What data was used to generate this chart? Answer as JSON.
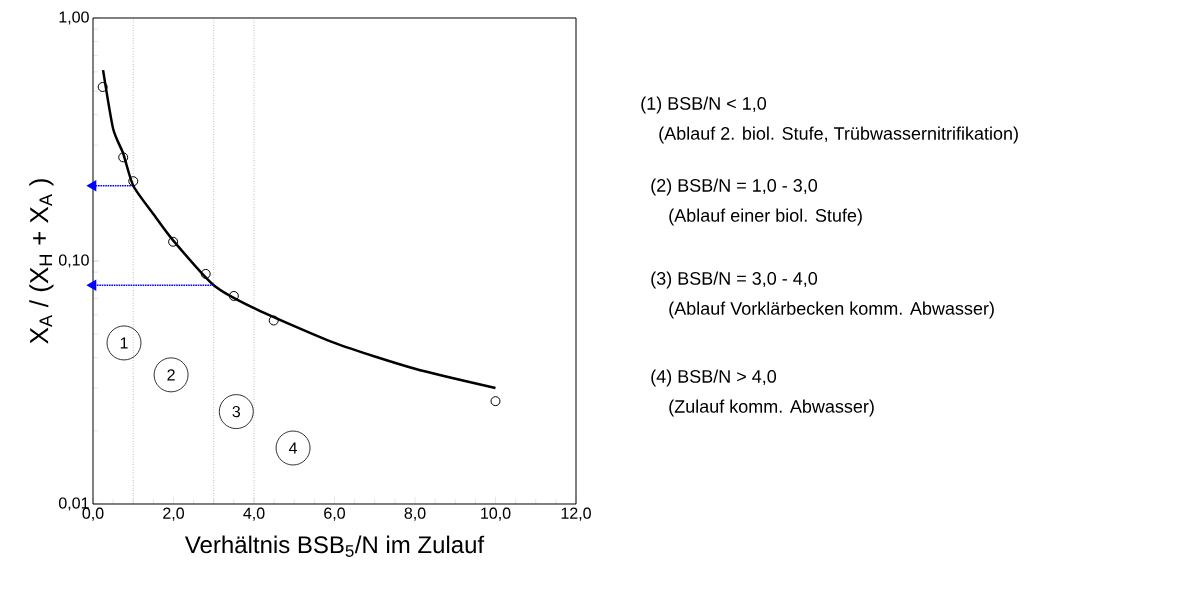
{
  "chart_data": {
    "type": "scatter",
    "xlabel": "Verhältnis BSB$_{5}$/N im Zulauf",
    "ylabel": "X$_{A}$ / (X$_{H}$ + X$_{A}$ )",
    "log": "y",
    "xlim": [
      0,
      12
    ],
    "ylim": [
      0.01,
      1
    ],
    "xticks": [
      {
        "value": 0,
        "label": "0,0"
      },
      {
        "value": 2,
        "label": "2,0"
      },
      {
        "value": 4,
        "label": "4,0"
      },
      {
        "value": 6,
        "label": "6,0"
      },
      {
        "value": 8,
        "label": "8,0"
      },
      {
        "value": 10,
        "label": "10,0"
      },
      {
        "value": 12,
        "label": "12,0"
      }
    ],
    "yticks": [
      {
        "value": 0.01,
        "label": "0,01"
      },
      {
        "value": 0.1,
        "label": "0,10"
      },
      {
        "value": 1,
        "label": "1,00"
      }
    ],
    "series": [
      {
        "color": "#000000",
        "marker": "circle",
        "x": [
          0.24,
          0.75,
          1.0,
          1.99,
          2.8,
          3.5,
          4.49,
          10.0
        ],
        "values": [
          0.52,
          0.267,
          0.213,
          0.12,
          0.0885,
          0.0718,
          0.0569,
          0.0265
        ]
      },
      {
        "type": "line",
        "color": "#000000",
        "line_style": "solid",
        "x": [
          0.25,
          0.5,
          0.75,
          1.0,
          1.5,
          2.0,
          3.0,
          4.0,
          6.0,
          8.0,
          10.0
        ],
        "values": [
          0.61,
          0.35,
          0.277,
          0.204,
          0.156,
          0.121,
          0.0795,
          0.064,
          0.046,
          0.036,
          0.03
        ]
      },
      {
        "type": "line",
        "color": "#0000ff",
        "line_style": "dotted",
        "x": [
          1.0,
          0.0
        ],
        "values": [
          0.204,
          0.204
        ]
      },
      {
        "type": "line",
        "color": "#0000ff",
        "line_style": "dotted",
        "x": [
          3.0,
          0.0
        ],
        "values": [
          0.0795,
          0.0795
        ]
      }
    ],
    "ref_lines": [
      {
        "axis": "x",
        "value": 1,
        "color": "#555555",
        "line_style": "dotted"
      },
      {
        "axis": "x",
        "value": 3,
        "color": "#555555",
        "line_style": "dotted"
      },
      {
        "axis": "x",
        "value": 4,
        "color": "#555555",
        "line_style": "dotted"
      }
    ],
    "annotations": [
      {
        "text": "1",
        "x": 0.77,
        "y": 0.046
      },
      {
        "text": "2",
        "x": 1.94,
        "y": 0.034
      },
      {
        "text": "3",
        "x": 3.56,
        "y": 0.024
      },
      {
        "text": "4",
        "x": 4.97,
        "y": 0.017
      },
      "(1)  BSB/N < 1,0",
      "(Ablauf 2. biol. Stufe, Trübwassernitrifikation)",
      "(2)  BSB/N = 1,0 - 3,0",
      "(Ablauf  einer biol. Stufe)",
      "(3)  BSB/N = 3,0 - 4,0",
      "(Ablauf Vorklärbecken komm. Abwasser)",
      "(4)  BSB/N > 4,0",
      "(Zulauf komm. Abwasser)"
    ]
  }
}
